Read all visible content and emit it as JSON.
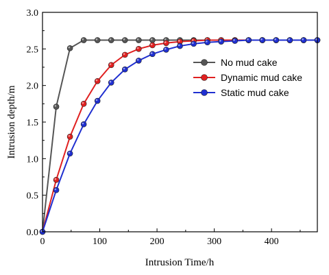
{
  "chart_data": {
    "type": "line",
    "title": "",
    "xlabel": "Intrusion Time/h",
    "ylabel": "Intrusion depth/m",
    "xlim": [
      0,
      480
    ],
    "ylim": [
      0,
      3.0
    ],
    "x_ticks": [
      0,
      100,
      200,
      300,
      400
    ],
    "y_ticks": [
      0.0,
      0.5,
      1.0,
      1.5,
      2.0,
      2.5,
      3.0
    ],
    "x_tick_labels": [
      "0",
      "100",
      "200",
      "300",
      "400"
    ],
    "y_tick_labels": [
      "0.0",
      "0.5",
      "1.0",
      "1.5",
      "2.0",
      "2.5",
      "3.0"
    ],
    "legend_position": "upper-right",
    "grid": false,
    "series": [
      {
        "name": "No mud cake",
        "color": "#555555",
        "x": [
          0,
          24,
          48,
          72,
          96,
          120,
          144,
          168,
          192,
          216,
          240,
          264,
          288,
          312,
          336,
          360,
          384,
          408,
          432,
          456,
          480
        ],
        "y": [
          0,
          1.71,
          2.51,
          2.62,
          2.62,
          2.62,
          2.62,
          2.62,
          2.62,
          2.62,
          2.62,
          2.62,
          2.62,
          2.62,
          2.62,
          2.62,
          2.62,
          2.62,
          2.62,
          2.62,
          2.62
        ]
      },
      {
        "name": "Dynamic mud cake",
        "color": "#e02020",
        "x": [
          0,
          24,
          48,
          72,
          96,
          120,
          144,
          168,
          192,
          216,
          240,
          264,
          288,
          312,
          336,
          360,
          384,
          408,
          432,
          456,
          480
        ],
        "y": [
          0,
          0.71,
          1.3,
          1.75,
          2.06,
          2.28,
          2.42,
          2.5,
          2.55,
          2.58,
          2.6,
          2.61,
          2.62,
          2.62,
          2.62,
          2.62,
          2.62,
          2.62,
          2.62,
          2.62,
          2.62
        ]
      },
      {
        "name": "Static mud cake",
        "color": "#1f2fd0",
        "x": [
          0,
          24,
          48,
          72,
          96,
          120,
          144,
          168,
          192,
          216,
          240,
          264,
          288,
          312,
          336,
          360,
          384,
          408,
          432,
          456,
          480
        ],
        "y": [
          0,
          0.57,
          1.07,
          1.47,
          1.79,
          2.04,
          2.22,
          2.34,
          2.43,
          2.49,
          2.54,
          2.57,
          2.59,
          2.6,
          2.61,
          2.62,
          2.62,
          2.62,
          2.62,
          2.62,
          2.62
        ]
      }
    ]
  }
}
